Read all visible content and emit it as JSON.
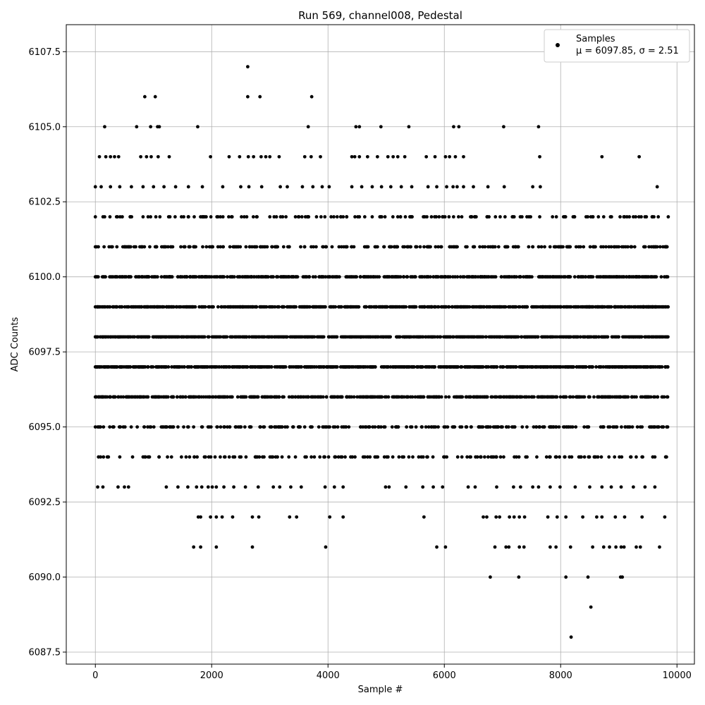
{
  "chart_data": {
    "type": "scatter",
    "title": "Run 569, channel008, Pedestal",
    "xlabel": "Sample #",
    "ylabel": "ADC Counts",
    "xlim": [
      -500,
      10300
    ],
    "ylim": [
      6087.1,
      6108.4
    ],
    "xticks": [
      0,
      2000,
      4000,
      6000,
      8000,
      10000
    ],
    "xtick_labels": [
      "0",
      "2000",
      "4000",
      "6000",
      "8000",
      "10000"
    ],
    "yticks": [
      6087.5,
      6090.0,
      6092.5,
      6095.0,
      6097.5,
      6100.0,
      6102.5,
      6105.0,
      6107.5
    ],
    "ytick_labels": [
      "6087.5",
      "6090.0",
      "6092.5",
      "6095.0",
      "6097.5",
      "6100.0",
      "6102.5",
      "6105.0",
      "6107.5"
    ],
    "grid": true,
    "legend_position": "top-right",
    "legend": {
      "series_label": "Samples",
      "stats_label": "μ = 6097.85, σ = 2.51"
    },
    "marker_color": "#000000",
    "x_range": [
      0,
      9850
    ],
    "mean": 6097.85,
    "std": 2.51,
    "levels": [
      {
        "y": 6088,
        "x": [
          8180
        ]
      },
      {
        "y": 6089,
        "x": [
          8520
        ]
      },
      {
        "y": 6090,
        "x": [
          6790,
          7280,
          8090,
          8470,
          9030,
          9060
        ]
      },
      {
        "y": 6091,
        "x": [
          1690,
          1810,
          2080,
          2700,
          3960,
          5870,
          6020,
          6870,
          7060,
          7110,
          7290,
          7370,
          7820,
          7920,
          8170,
          8550,
          8740,
          8840,
          8950,
          9040,
          9090,
          9300,
          9370,
          9700
        ]
      },
      {
        "y": 6092,
        "x": [
          1770,
          1810,
          1980,
          2080,
          2180,
          2360,
          2700,
          2810,
          3340,
          3460,
          4030,
          4260,
          5650,
          6670,
          6730,
          6890,
          6950,
          7120,
          7200,
          7290,
          7380,
          7780,
          7940,
          8090,
          8380,
          8620,
          8710,
          8940,
          9100,
          9400,
          9790
        ]
      },
      {
        "y": 6093,
        "x": [
          40,
          130,
          390,
          500,
          570,
          1220,
          1420,
          1590,
          1740,
          1830,
          1940,
          2010,
          2080,
          2210,
          2380,
          2580,
          2800,
          3060,
          3170,
          3360,
          3540,
          3950,
          4110,
          4260,
          4990,
          5050,
          5340,
          5630,
          5810,
          5970,
          6410,
          6530,
          6900,
          7190,
          7310,
          7520,
          7620,
          7820,
          7990,
          8250,
          8500,
          8710,
          8870,
          9040,
          9250,
          9450,
          9620
        ]
      },
      {
        "y": 6094,
        "x": [
          90,
          420,
          640,
          820,
          930,
          1240,
          1480,
          1620,
          1750,
          1950,
          2230,
          2370,
          2590,
          2750,
          2900,
          3100,
          3210,
          3440,
          3860,
          4010,
          4180,
          4390,
          4680,
          4830,
          5010,
          5220,
          5390,
          5560,
          5700,
          5990,
          6440,
          6620,
          6850,
          7020,
          7240,
          7400,
          7590,
          7810,
          7980,
          8190,
          8410,
          8640,
          8830,
          9010,
          9210,
          9410,
          9620,
          9820
        ]
      },
      {
        "y": 6095,
        "x": [
          0,
          140,
          310,
          510,
          720,
          900,
          1230,
          1420,
          1600,
          1830,
          2090,
          2270,
          2410,
          2660,
          2890,
          3110,
          3300,
          3520,
          3700,
          3910,
          4120,
          4310,
          4560,
          4770,
          4980,
          5180,
          5420,
          5610,
          5850,
          6020,
          6380,
          6590,
          6790,
          6980,
          7210,
          7420,
          7630,
          7840,
          8050,
          8260,
          8480,
          8690,
          8900,
          9110,
          9320,
          9530,
          9740,
          9840
        ]
      },
      {
        "y": 6096,
        "x": [
          0,
          120,
          340,
          560,
          780,
          1000,
          1250,
          1460,
          1680,
          1900,
          2120,
          2340,
          2560,
          2780,
          3000,
          3220,
          3440,
          3660,
          3880,
          4100,
          4320,
          4540,
          4760,
          4980,
          5200,
          5420,
          5640,
          5860,
          6080,
          6300,
          6520,
          6740,
          6960,
          7180,
          7400,
          7620,
          7840,
          8060,
          8280,
          8500,
          8720,
          8940,
          9160,
          9380,
          9600,
          9840
        ]
      },
      {
        "y": 6097,
        "x": [
          0,
          110,
          330,
          550,
          770,
          990,
          1210,
          1430,
          1650,
          1870,
          2090,
          2310,
          2530,
          2750,
          2970,
          3190,
          3410,
          3630,
          3850,
          4070,
          4290,
          4510,
          4730,
          4950,
          5170,
          5390,
          5610,
          5830,
          6050,
          6190,
          6410,
          6630,
          6850,
          7070,
          7290,
          7510,
          7730,
          7950,
          8170,
          8390,
          8610,
          8830,
          9050,
          9270,
          9490,
          9710,
          9840
        ]
      },
      {
        "y": 6098,
        "x": [
          0,
          120,
          340,
          560,
          780,
          1000,
          1220,
          1440,
          1660,
          1880,
          2100,
          2320,
          2540,
          2760,
          2980,
          3200,
          3420,
          3640,
          3860,
          4080,
          4300,
          4520,
          4740,
          4960,
          5180,
          5400,
          5620,
          5840,
          6060,
          6280,
          6500,
          6720,
          6940,
          7160,
          7380,
          7600,
          7820,
          8040,
          8260,
          8480,
          8700,
          8920,
          9140,
          9360,
          9580,
          9840
        ]
      },
      {
        "y": 6099,
        "x": [
          0,
          130,
          350,
          570,
          790,
          1010,
          1230,
          1450,
          1670,
          1890,
          2110,
          2330,
          2550,
          2770,
          2990,
          3210,
          3430,
          3650,
          3870,
          4090,
          4310,
          4530,
          4750,
          4970,
          5190,
          5410,
          5630,
          5850,
          6070,
          6290,
          6510,
          6730,
          6950,
          7170,
          7390,
          7610,
          7830,
          8050,
          8270,
          8490,
          8710,
          8930,
          9150,
          9370,
          9590,
          9840
        ]
      },
      {
        "y": 6100,
        "x": [
          0,
          140,
          360,
          580,
          800,
          1020,
          1240,
          1460,
          1680,
          1900,
          2150,
          2360,
          2580,
          2800,
          3020,
          3240,
          3460,
          3680,
          3900,
          4120,
          4340,
          4560,
          4780,
          5000,
          5220,
          5440,
          5660,
          5880,
          6100,
          6320,
          6540,
          6760,
          6980,
          7200,
          7420,
          7640,
          7860,
          8080,
          8300,
          8520,
          8740,
          8960,
          9180,
          9400,
          9620,
          9840
        ]
      },
      {
        "y": 6101,
        "x": [
          0,
          150,
          370,
          590,
          810,
          1030,
          1250,
          1470,
          1690,
          1910,
          2150,
          2370,
          2590,
          2870,
          3090,
          3310,
          3530,
          3750,
          3970,
          4190,
          4410,
          4630,
          4850,
          5070,
          5290,
          5510,
          5730,
          5950,
          6170,
          6390,
          6610,
          6830,
          7050,
          7230,
          7450,
          7670,
          7890,
          8120,
          8340,
          8560,
          8780,
          9000,
          9220,
          9440,
          9660,
          9800
        ]
      },
      {
        "y": 6102,
        "x": [
          0,
          160,
          380,
          600,
          820,
          1040,
          1260,
          1480,
          1700,
          1860,
          2150,
          2340,
          2560,
          2780,
          3000,
          3220,
          3440,
          3660,
          3880,
          4100,
          4320,
          4540,
          4760,
          4980,
          5200,
          5420,
          5640,
          5860,
          6080,
          6300,
          6520,
          6740,
          6960,
          7200,
          7420,
          7640,
          7860,
          8050,
          8240,
          8520,
          8740,
          9100,
          9250,
          9450,
          9850
        ]
      },
      {
        "y": 6103,
        "x": [
          0,
          100,
          260,
          420,
          620,
          820,
          1000,
          1180,
          1380,
          1600,
          1840,
          2190,
          2500,
          2640,
          2860,
          3180,
          3300,
          3560,
          3740,
          3900,
          4020,
          4410,
          4580,
          4760,
          4920,
          5080,
          5260,
          5440,
          5720,
          5870,
          6040,
          6150,
          6220,
          6330,
          6500,
          6750,
          7030,
          7520,
          7650,
          9660
        ]
      },
      {
        "y": 6104,
        "x": [
          70,
          180,
          260,
          330,
          400,
          780,
          880,
          960,
          1080,
          1270,
          1980,
          2300,
          2480,
          2630,
          2720,
          2850,
          2930,
          3000,
          3160,
          3600,
          3710,
          3870,
          4410,
          4460,
          4540,
          4680,
          4850,
          5030,
          5120,
          5200,
          5320,
          5690,
          5840,
          6020,
          6090,
          6190,
          6330,
          7640,
          8710,
          9350
        ]
      },
      {
        "y": 6105,
        "x": [
          160,
          710,
          950,
          1070,
          1100,
          1760,
          3660,
          4480,
          4540,
          4910,
          5390,
          6160,
          6250,
          7020,
          7620
        ]
      },
      {
        "y": 6106,
        "x": [
          850,
          1030,
          2620,
          2830,
          3720
        ]
      },
      {
        "y": 6107,
        "x": [
          2620
        ]
      }
    ]
  }
}
